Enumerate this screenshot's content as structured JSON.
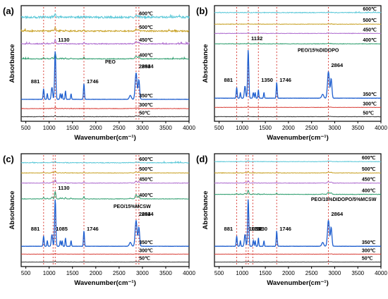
{
  "figure": {
    "description_hidden": ""
  },
  "chart_data": [
    {
      "panel": "(a)",
      "type": "line",
      "xlabel": "Wavenumber(cm⁻¹)",
      "ylabel": "Absorbance",
      "xlim": [
        400,
        4000
      ],
      "xticks": [
        500,
        1000,
        1500,
        2000,
        2500,
        3000,
        3500,
        4000
      ],
      "sample_label": "PEO",
      "dashed_lines_x": [
        881,
        1130,
        1746,
        2864,
        2924
      ],
      "peak_labels": [
        {
          "text": "881",
          "x": 881
        },
        {
          "text": "1130",
          "x": 1130
        },
        {
          "text": "1746",
          "x": 1746
        },
        {
          "text": "2864",
          "x": 2864
        },
        {
          "text": "2924",
          "x": 2924
        }
      ],
      "series": [
        {
          "name": "600℃",
          "color": "#5bc8d8",
          "strength": 0.25,
          "noise": 0.9
        },
        {
          "name": "500℃",
          "color": "#c9a227",
          "strength": 0.25,
          "noise": 0.6
        },
        {
          "name": "450℃",
          "color": "#b06fd0",
          "strength": 0.3,
          "noise": 0.4
        },
        {
          "name": "400℃",
          "color": "#2e9e6e",
          "strength": 0.4,
          "noise": 0.3
        },
        {
          "name": "350℃",
          "color": "#1f5fcf",
          "strength": 1.0,
          "noise": 0.1
        },
        {
          "name": "300℃",
          "color": "#d9413a",
          "strength": 0.1,
          "noise": 0.2
        },
        {
          "name": "50℃",
          "color": "#333333",
          "strength": 0.08,
          "noise": 0.2
        }
      ]
    },
    {
      "panel": "(b)",
      "type": "line",
      "xlabel": "Wavenumber(cm⁻¹)",
      "ylabel": "Absorbance",
      "xlim": [
        400,
        4000
      ],
      "xticks": [
        500,
        1000,
        1500,
        2000,
        2500,
        3000,
        3500,
        4000
      ],
      "sample_label": "PEO/15%DIDOPO",
      "dashed_lines_x": [
        881,
        1132,
        1350,
        1746,
        2864
      ],
      "peak_labels": [
        {
          "text": "881",
          "x": 881
        },
        {
          "text": "1132",
          "x": 1132
        },
        {
          "text": "1350",
          "x": 1350
        },
        {
          "text": "1746",
          "x": 1746
        },
        {
          "text": "2864",
          "x": 2864
        }
      ],
      "series": [
        {
          "name": "600℃",
          "color": "#5bc8d8",
          "strength": 0.05,
          "noise": 0.3
        },
        {
          "name": "500℃",
          "color": "#c9a227",
          "strength": 0.05,
          "noise": 0.2
        },
        {
          "name": "450℃",
          "color": "#b06fd0",
          "strength": 0.05,
          "noise": 0.2
        },
        {
          "name": "400℃",
          "color": "#2e9e6e",
          "strength": 0.05,
          "noise": 0.2
        },
        {
          "name": "350℃",
          "color": "#1f5fcf",
          "strength": 1.0,
          "noise": 0.1
        },
        {
          "name": "300℃",
          "color": "#d9413a",
          "strength": 0.05,
          "noise": 0.15
        },
        {
          "name": "50℃",
          "color": "#333333",
          "strength": 0.05,
          "noise": 0.15
        }
      ]
    },
    {
      "panel": "(c)",
      "type": "line",
      "xlabel": "Wavenumber(cm⁻¹)",
      "ylabel": "Absorbance",
      "xlim": [
        400,
        4000
      ],
      "xticks": [
        500,
        1000,
        1500,
        2000,
        2500,
        3000,
        3500,
        4000
      ],
      "sample_label": "PEO/15%MCSW",
      "dashed_lines_x": [
        881,
        1085,
        1130,
        1746,
        2864,
        2924
      ],
      "peak_labels": [
        {
          "text": "881",
          "x": 881
        },
        {
          "text": "1085",
          "x": 1085
        },
        {
          "text": "1130",
          "x": 1130
        },
        {
          "text": "1746",
          "x": 1746
        },
        {
          "text": "2864",
          "x": 2864
        },
        {
          "text": "2924",
          "x": 2924
        }
      ],
      "series": [
        {
          "name": "600℃",
          "color": "#5bc8d8",
          "strength": 0.12,
          "noise": 0.3
        },
        {
          "name": "500℃",
          "color": "#c9a227",
          "strength": 0.15,
          "noise": 0.2
        },
        {
          "name": "450℃",
          "color": "#b06fd0",
          "strength": 0.25,
          "noise": 0.2
        },
        {
          "name": "400℃",
          "color": "#2e9e6e",
          "strength": 0.55,
          "noise": 0.2
        },
        {
          "name": "350℃",
          "color": "#1f5fcf",
          "strength": 1.0,
          "noise": 0.1
        },
        {
          "name": "300℃",
          "color": "#d9413a",
          "strength": 0.05,
          "noise": 0.1
        },
        {
          "name": "50℃",
          "color": "#333333",
          "strength": 0.05,
          "noise": 0.1
        }
      ]
    },
    {
      "panel": "(d)",
      "type": "line",
      "xlabel": "Wavenumber(cm⁻¹)",
      "ylabel": "Absorbance",
      "xlim": [
        400,
        4000
      ],
      "xticks": [
        500,
        1000,
        1500,
        2000,
        2500,
        3000,
        3500,
        4000
      ],
      "sample_label": "PEO/10%DIDOPO/5%MCSW",
      "dashed_lines_x": [
        881,
        1083,
        1132,
        1230,
        1746,
        2864
      ],
      "peak_labels": [
        {
          "text": "881",
          "x": 881
        },
        {
          "text": "1083",
          "x": 1083
        },
        {
          "text": "1132",
          "x": 1132
        },
        {
          "text": "1230",
          "x": 1230
        },
        {
          "text": "1746",
          "x": 1746
        },
        {
          "text": "2864",
          "x": 2864
        }
      ],
      "series": [
        {
          "name": "600℃",
          "color": "#5bc8d8",
          "strength": 0.08,
          "noise": 0.2
        },
        {
          "name": "500℃",
          "color": "#c9a227",
          "strength": 0.12,
          "noise": 0.2
        },
        {
          "name": "450℃",
          "color": "#b06fd0",
          "strength": 0.18,
          "noise": 0.2
        },
        {
          "name": "400℃",
          "color": "#2e9e6e",
          "strength": 0.3,
          "noise": 0.2
        },
        {
          "name": "350℃",
          "color": "#1f5fcf",
          "strength": 1.0,
          "noise": 0.1
        },
        {
          "name": "300℃",
          "color": "#d9413a",
          "strength": 0.05,
          "noise": 0.1
        },
        {
          "name": "50℃",
          "color": "#333333",
          "strength": 0.05,
          "noise": 0.1
        }
      ]
    }
  ]
}
